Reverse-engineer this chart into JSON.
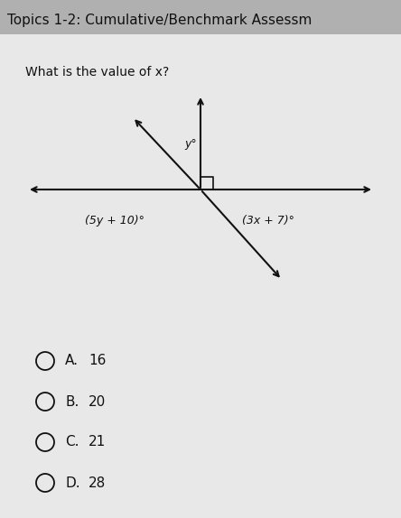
{
  "title": "Topics 1-2: Cumulative/Benchmark Assessm",
  "question": "What is the value of x?",
  "choices": [
    "A.  16",
    "B.  20",
    "C.  21",
    "D.  28"
  ],
  "angle_label_left": "(5y + 10)°",
  "angle_label_right": "(3x + 7)°",
  "angle_label_upper": "y°",
  "line_color": "#111111",
  "text_color": "#111111",
  "title_bg": "#b0b0b0",
  "body_bg": "#d4d4d4",
  "content_bg": "#dcdcdc"
}
